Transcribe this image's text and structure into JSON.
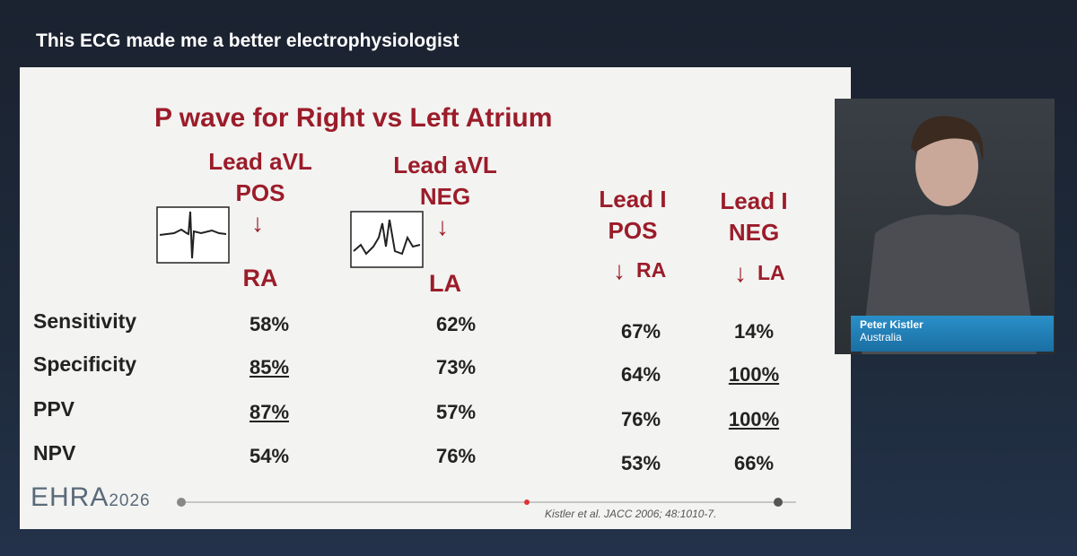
{
  "header": {
    "title": "This ECG made me a better electrophysiologist"
  },
  "slide": {
    "title": "P wave for Right vs Left Atrium",
    "columns": [
      {
        "lines": [
          "Lead aVL",
          "POS"
        ],
        "result": "RA"
      },
      {
        "lines": [
          "Lead aVL",
          "NEG"
        ],
        "result": "LA"
      },
      {
        "lines": [
          "Lead I",
          "POS"
        ],
        "result": "RA"
      },
      {
        "lines": [
          "Lead I",
          "NEG"
        ],
        "result": "LA"
      }
    ],
    "rows": [
      {
        "label": "Sensitivity",
        "cells": [
          {
            "text": "58%",
            "underline": false
          },
          {
            "text": "62%",
            "underline": false
          },
          {
            "text": "67%",
            "underline": false
          },
          {
            "text": "14%",
            "underline": false
          }
        ]
      },
      {
        "label": "Specificity",
        "cells": [
          {
            "text": "85%",
            "underline": true
          },
          {
            "text": "73%",
            "underline": false
          },
          {
            "text": "64%",
            "underline": false
          },
          {
            "text": "100%",
            "underline": true
          }
        ]
      },
      {
        "label": "PPV",
        "cells": [
          {
            "text": "87%",
            "underline": true
          },
          {
            "text": "57%",
            "underline": false
          },
          {
            "text": "76%",
            "underline": false
          },
          {
            "text": "100%",
            "underline": true
          }
        ]
      },
      {
        "label": "NPV",
        "cells": [
          {
            "text": "54%",
            "underline": false
          },
          {
            "text": "76%",
            "underline": false
          },
          {
            "text": "53%",
            "underline": false
          },
          {
            "text": "66%",
            "underline": false
          }
        ]
      }
    ],
    "logo": {
      "name": "EHRA",
      "year": "2026"
    },
    "citation": "Kistler et al. JACC 2006; 48:1010-7."
  },
  "speaker": {
    "name": "Peter Kistler",
    "country": "Australia"
  }
}
